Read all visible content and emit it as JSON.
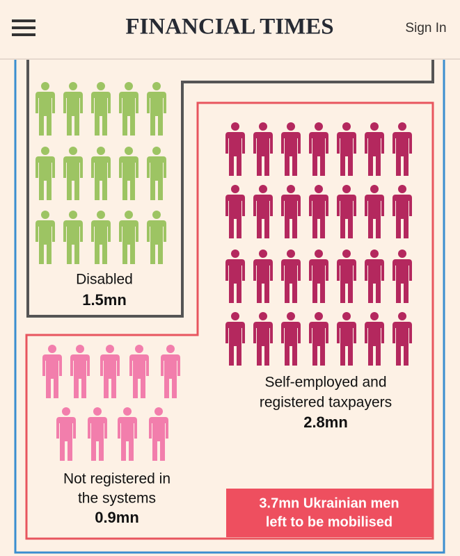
{
  "header": {
    "title": "FINANCIAL TIMES",
    "sign_in": "Sign In"
  },
  "top_value": "1.5mn",
  "groups": {
    "disabled": {
      "label": [
        "Disabled"
      ],
      "value": "1.5mn"
    },
    "self_employed": {
      "label": [
        "Self-employed and",
        "registered taxpayers"
      ],
      "value": "2.8mn"
    },
    "not_registered": {
      "label": [
        "Not registered in",
        "the systems"
      ],
      "value": "0.9mn"
    }
  },
  "callout": [
    "3.7mn Ukrainian men",
    "left to be mobilised"
  ]
}
